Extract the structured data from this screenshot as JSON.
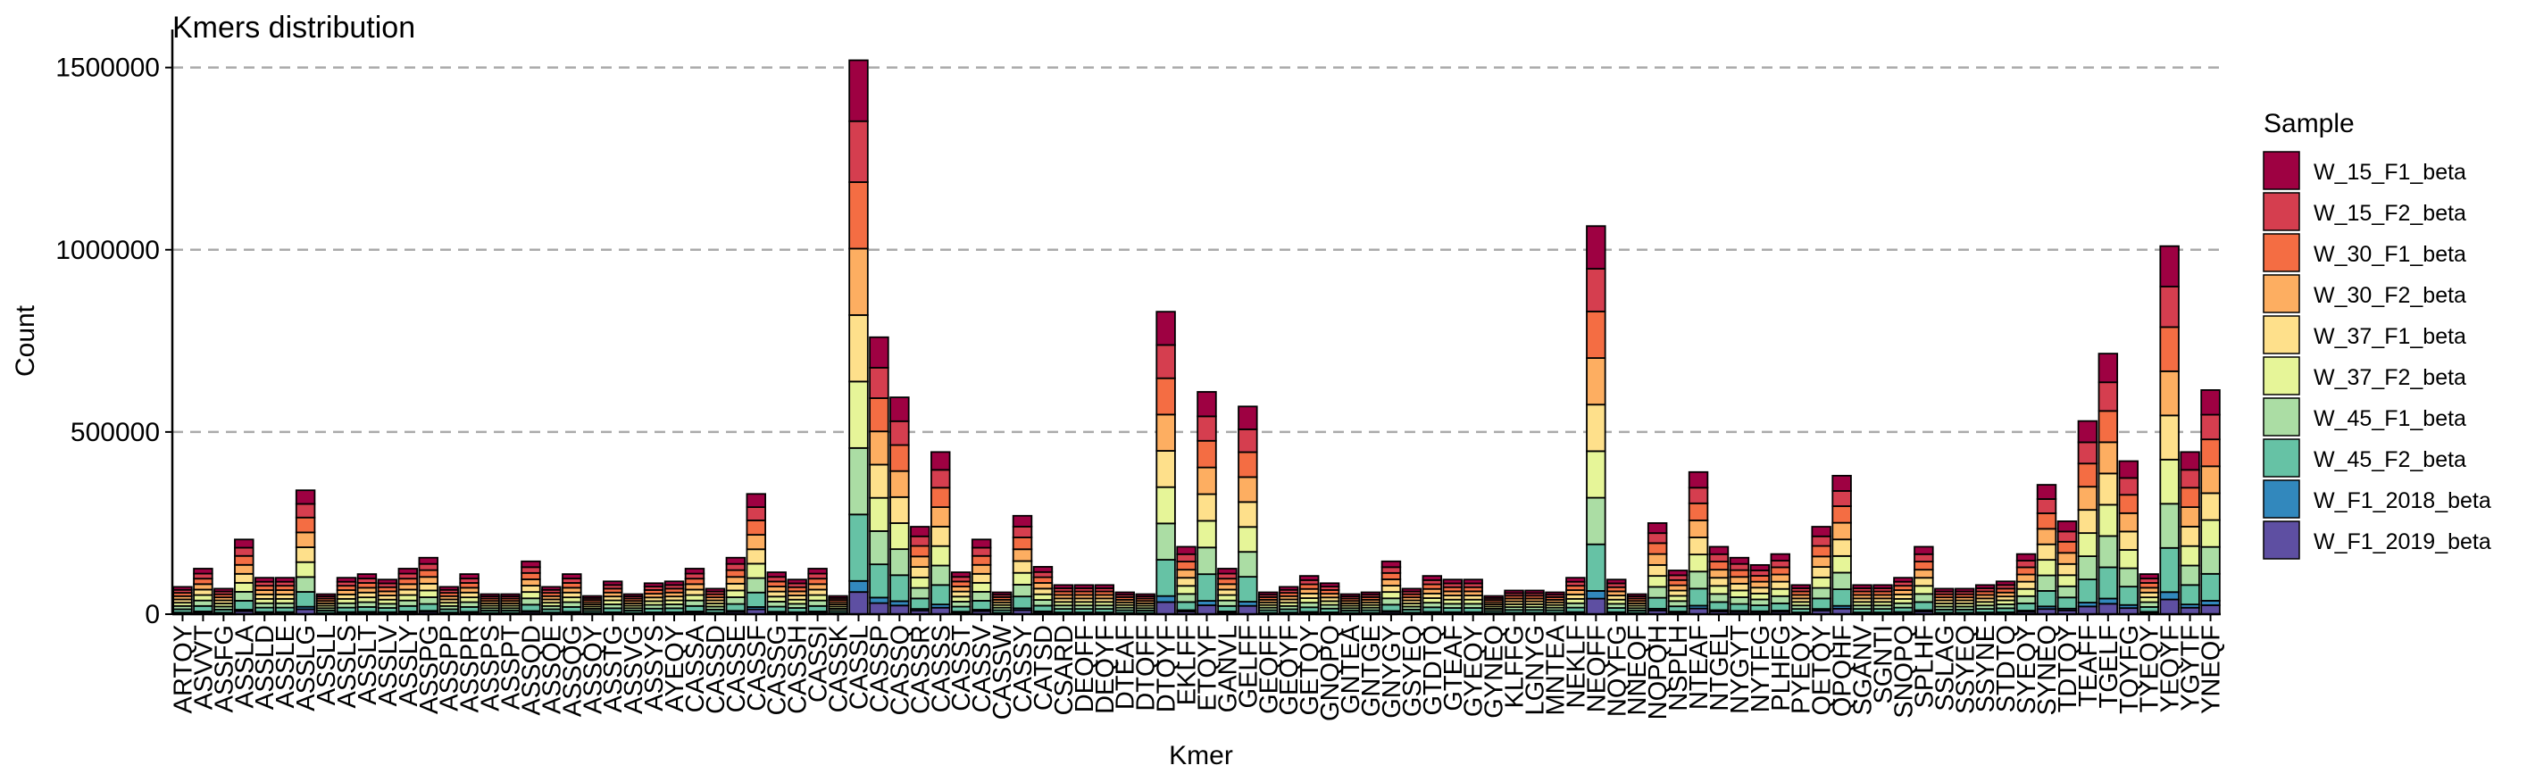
{
  "chart_data": {
    "type": "stacked_bar",
    "title": "Kmers distribution",
    "x_label": "Kmer",
    "y_label": "Count",
    "categories": [
      "ARTQY",
      "ASVVT",
      "ASSFG",
      "ASSLA",
      "ASSLD",
      "ASSLE",
      "ASSLG",
      "ASSLL",
      "ASSLS",
      "ASSLT",
      "ASSLV",
      "ASSLY",
      "ASSPG",
      "ASSPP",
      "ASSPR",
      "ASSPS",
      "ASSPT",
      "ASSQD",
      "ASSQE",
      "ASSQG",
      "ASSQY",
      "ASSTG",
      "ASSVG",
      "ASSYS",
      "AYEQY",
      "CASSA",
      "CASSD",
      "CASSE",
      "CASSF",
      "CASSG",
      "CASSH",
      "CASSI",
      "CASSK",
      "CASSL",
      "CASSP",
      "CASSQ",
      "CASSR",
      "CASSS",
      "CASST",
      "CASSV",
      "CASSW",
      "CASSY",
      "CATSD",
      "CSARD",
      "DEQFF",
      "DEQYF",
      "DTEAF",
      "DTQFF",
      "DTQYF",
      "EKLFF",
      "ETQYF",
      "GANVL",
      "GELFF",
      "GEQFF",
      "GEQYF",
      "GETQY",
      "GNQPQ",
      "GNTEA",
      "GNTGE",
      "GNYGY",
      "GSYEQ",
      "GTDTQ",
      "GTEAF",
      "GYEQY",
      "GYNEQ",
      "KLFFG",
      "LGNYG",
      "MNTEA",
      "NEKLF",
      "NEQFF",
      "NQYFG",
      "NNEQF",
      "NQPQH",
      "NSPLH",
      "NTEAF",
      "NTGEL",
      "NYGYT",
      "NYTFG",
      "PLHFG",
      "PYEQY",
      "QETQY",
      "QPQHF",
      "SGANV",
      "SGNTI",
      "SNQPQ",
      "SPLHF",
      "SSLAG",
      "SSYEQ",
      "SSYNE",
      "STDTQ",
      "SYEQY",
      "SYNEQ",
      "TDTQY",
      "TEAFF",
      "TGELF",
      "TQYFG",
      "TYEQY",
      "YEQYF",
      "YGYTF",
      "YNEQF"
    ],
    "series": [
      {
        "name": "W_15_F1_beta",
        "color": "#9E0142",
        "values": [
          8250,
          13750,
          7700,
          22550,
          11000,
          11000,
          37400,
          6050,
          11000,
          12100,
          10450,
          13750,
          17050,
          8250,
          12100,
          6050,
          6050,
          15950,
          8250,
          12100,
          5500,
          9900,
          6050,
          9350,
          9900,
          13750,
          7700,
          17050,
          36300,
          12650,
          10450,
          13750,
          5500,
          167200,
          83600,
          65450,
          26400,
          48950,
          12650,
          22550,
          6600,
          29700,
          14300,
          8800,
          8800,
          8800,
          6600,
          6050,
          91300,
          20350,
          67100,
          13750,
          62700,
          6600,
          8250,
          11550,
          9350,
          6050,
          6600,
          15950,
          7700,
          11550,
          10450,
          10450,
          5500,
          7150,
          7150,
          6600,
          11000,
          117150,
          10450,
          6050,
          27500,
          13200,
          42900,
          20350,
          17050,
          14850,
          18150,
          8800,
          26400,
          41800,
          8800,
          8800,
          11000,
          20350,
          7700,
          7700,
          8800,
          9900,
          18150,
          39050,
          28050,
          58300,
          78650,
          46200,
          12100,
          111100,
          48950,
          67650
        ]
      },
      {
        "name": "W_15_F2_beta",
        "color": "#D53E4F",
        "values": [
          8250,
          13750,
          7700,
          22550,
          11000,
          11000,
          37400,
          6050,
          11000,
          12100,
          10450,
          13750,
          17050,
          8250,
          12100,
          6050,
          6050,
          15950,
          8250,
          12100,
          5500,
          9900,
          6050,
          9350,
          9900,
          13750,
          7700,
          17050,
          36300,
          12650,
          10450,
          13750,
          5500,
          167200,
          83600,
          65450,
          26400,
          48950,
          12650,
          22550,
          6600,
          29700,
          14300,
          8800,
          8800,
          8800,
          6600,
          6050,
          91300,
          20350,
          67100,
          13750,
          62700,
          6600,
          8250,
          11550,
          9350,
          6050,
          6600,
          15950,
          7700,
          11550,
          10450,
          10450,
          5500,
          7150,
          7150,
          6600,
          11000,
          117150,
          10450,
          6050,
          27500,
          13200,
          42900,
          20350,
          17050,
          14850,
          18150,
          8800,
          26400,
          41800,
          8800,
          8800,
          11000,
          20350,
          7700,
          7700,
          8800,
          9900,
          18150,
          39050,
          28050,
          58300,
          78650,
          46200,
          12100,
          111100,
          48950,
          67650
        ]
      },
      {
        "name": "W_30_F1_beta",
        "color": "#F46D43",
        "values": [
          9000,
          15000,
          8400,
          24600,
          12000,
          12000,
          40800,
          6600,
          12000,
          13200,
          11400,
          15000,
          18600,
          9000,
          13200,
          6600,
          6600,
          17400,
          9000,
          13200,
          6000,
          10800,
          6600,
          10200,
          10800,
          15000,
          8400,
          18600,
          39600,
          13800,
          11400,
          15000,
          6000,
          182400,
          91200,
          71400,
          28800,
          53400,
          13800,
          24600,
          7200,
          32400,
          15600,
          9600,
          9600,
          9600,
          7200,
          6600,
          99600,
          22200,
          73200,
          15000,
          68400,
          7200,
          9000,
          12600,
          10200,
          6600,
          7200,
          17400,
          8400,
          12600,
          11400,
          11400,
          6000,
          7800,
          7800,
          7200,
          12000,
          127800,
          11400,
          6600,
          30000,
          14400,
          46800,
          22200,
          18600,
          16200,
          19800,
          9600,
          28800,
          45600,
          9600,
          9600,
          12000,
          22200,
          8400,
          8400,
          9600,
          10800,
          19800,
          42600,
          30600,
          63600,
          85800,
          50400,
          13200,
          121200,
          53400,
          73800
        ]
      },
      {
        "name": "W_30_F2_beta",
        "color": "#FDAE61",
        "values": [
          9000,
          15000,
          8400,
          24600,
          12000,
          12000,
          40800,
          6600,
          12000,
          13200,
          11400,
          15000,
          18600,
          9000,
          13200,
          6600,
          6600,
          17400,
          9000,
          13200,
          6000,
          10800,
          6600,
          10200,
          10800,
          15000,
          8400,
          18600,
          39600,
          13800,
          11400,
          15000,
          6000,
          182400,
          91200,
          71400,
          28800,
          53400,
          13800,
          24600,
          7200,
          32400,
          15600,
          9600,
          9600,
          9600,
          7200,
          6600,
          99600,
          22200,
          73200,
          15000,
          68400,
          7200,
          9000,
          12600,
          10200,
          6600,
          7200,
          17400,
          8400,
          12600,
          11400,
          11400,
          6000,
          7800,
          7800,
          7200,
          12000,
          127800,
          11400,
          6600,
          30000,
          14400,
          46800,
          22200,
          18600,
          16200,
          19800,
          9600,
          28800,
          45600,
          9600,
          9600,
          12000,
          22200,
          8400,
          8400,
          9600,
          10800,
          19800,
          42600,
          30600,
          63600,
          85800,
          50400,
          13200,
          121200,
          53400,
          73800
        ]
      },
      {
        "name": "W_37_F1_beta",
        "color": "#FEE08B",
        "values": [
          9000,
          15000,
          8400,
          24600,
          12000,
          12000,
          40800,
          6600,
          12000,
          13200,
          11400,
          15000,
          18600,
          9000,
          13200,
          6600,
          6600,
          17400,
          9000,
          13200,
          6000,
          10800,
          6600,
          10200,
          10800,
          15000,
          8400,
          18600,
          39600,
          13800,
          11400,
          15000,
          6000,
          182400,
          91200,
          71400,
          28800,
          53400,
          13800,
          24600,
          7200,
          32400,
          15600,
          9600,
          9600,
          9600,
          7200,
          6600,
          99600,
          22200,
          73200,
          15000,
          68400,
          7200,
          9000,
          12600,
          10200,
          6600,
          7200,
          17400,
          8400,
          12600,
          11400,
          11400,
          6000,
          7800,
          7800,
          7200,
          12000,
          127800,
          11400,
          6600,
          30000,
          14400,
          46800,
          22200,
          18600,
          16200,
          19800,
          9600,
          28800,
          45600,
          9600,
          9600,
          12000,
          22200,
          8400,
          8400,
          9600,
          10800,
          19800,
          42600,
          30600,
          63600,
          85800,
          50400,
          13200,
          121200,
          53400,
          73800
        ]
      },
      {
        "name": "W_37_F2_beta",
        "color": "#E6F598",
        "values": [
          9000,
          15000,
          8400,
          24600,
          12000,
          12000,
          40800,
          6600,
          12000,
          13200,
          11400,
          15000,
          18600,
          9000,
          13200,
          6600,
          6600,
          17400,
          9000,
          13200,
          6000,
          10800,
          6600,
          10200,
          10800,
          15000,
          8400,
          18600,
          39600,
          13800,
          11400,
          15000,
          6000,
          182400,
          91200,
          71400,
          28800,
          53400,
          13800,
          24600,
          7200,
          32400,
          15600,
          9600,
          9600,
          9600,
          7200,
          6600,
          99600,
          22200,
          73200,
          15000,
          68400,
          7200,
          9000,
          12600,
          10200,
          6600,
          7200,
          17400,
          8400,
          12600,
          11400,
          11400,
          6000,
          7800,
          7800,
          7200,
          12000,
          127800,
          11400,
          6600,
          30000,
          14400,
          46800,
          22200,
          18600,
          16200,
          19800,
          9600,
          28800,
          45600,
          9600,
          9600,
          12000,
          22200,
          8400,
          8400,
          9600,
          10800,
          19800,
          42600,
          30600,
          63600,
          85800,
          50400,
          13200,
          121200,
          53400,
          73800
        ]
      },
      {
        "name": "W_45_F1_beta",
        "color": "#ABDDA4",
        "values": [
          9000,
          15000,
          8400,
          24600,
          12000,
          12000,
          40800,
          6600,
          12000,
          13200,
          11400,
          15000,
          18600,
          9000,
          13200,
          6600,
          6600,
          17400,
          9000,
          13200,
          6000,
          10800,
          6600,
          10200,
          10800,
          15000,
          8400,
          18600,
          39600,
          13800,
          11400,
          15000,
          6000,
          182400,
          91200,
          71400,
          28800,
          53400,
          13800,
          24600,
          7200,
          32400,
          15600,
          9600,
          9600,
          9600,
          7200,
          6600,
          99600,
          22200,
          73200,
          15000,
          68400,
          7200,
          9000,
          12600,
          10200,
          6600,
          7200,
          17400,
          8400,
          12600,
          11400,
          11400,
          6000,
          7800,
          7800,
          7200,
          12000,
          127800,
          11400,
          6600,
          30000,
          14400,
          46800,
          22200,
          18600,
          16200,
          19800,
          9600,
          28800,
          45600,
          9600,
          9600,
          12000,
          22200,
          8400,
          8400,
          9600,
          10800,
          19800,
          42600,
          30600,
          63600,
          85800,
          50400,
          13200,
          121200,
          53400,
          73800
        ]
      },
      {
        "name": "W_45_F2_beta",
        "color": "#66C2A5",
        "values": [
          9000,
          15000,
          8400,
          24600,
          12000,
          12000,
          40800,
          6600,
          12000,
          13200,
          11400,
          15000,
          18600,
          9000,
          13200,
          6600,
          6600,
          17400,
          9000,
          13200,
          6000,
          10800,
          6600,
          10200,
          10800,
          15000,
          8400,
          18600,
          39600,
          13800,
          11400,
          15000,
          6000,
          182400,
          91200,
          71400,
          28800,
          53400,
          13800,
          24600,
          7200,
          32400,
          15600,
          9600,
          9600,
          9600,
          7200,
          6600,
          99600,
          22200,
          73200,
          15000,
          68400,
          7200,
          9000,
          12600,
          10200,
          6600,
          7200,
          17400,
          8400,
          12600,
          11400,
          11400,
          6000,
          7800,
          7800,
          7200,
          12000,
          127800,
          11400,
          6600,
          30000,
          14400,
          46800,
          22200,
          18600,
          16200,
          19800,
          9600,
          28800,
          45600,
          9600,
          9600,
          12000,
          22200,
          8400,
          8400,
          9600,
          10800,
          19800,
          42600,
          30600,
          63600,
          85800,
          50400,
          13200,
          121200,
          53400,
          73800
        ]
      },
      {
        "name": "W_F1_2018_beta",
        "color": "#3288BD",
        "values": [
          1500,
          2500,
          1400,
          4100,
          2000,
          2000,
          6800,
          1100,
          2000,
          2200,
          1900,
          2500,
          3100,
          1500,
          2200,
          1100,
          1100,
          2900,
          1500,
          2200,
          1000,
          1800,
          1100,
          1700,
          1800,
          2500,
          1400,
          3100,
          6600,
          2300,
          1900,
          2500,
          1000,
          30400,
          15200,
          11900,
          4800,
          8900,
          2300,
          4100,
          1200,
          5400,
          2600,
          1600,
          1600,
          1600,
          1200,
          1100,
          16600,
          3700,
          12200,
          2500,
          11400,
          1200,
          1500,
          2100,
          1700,
          1100,
          1200,
          2900,
          1400,
          2100,
          1900,
          1900,
          1000,
          1300,
          1300,
          1200,
          2000,
          21300,
          1900,
          1100,
          5000,
          2400,
          7800,
          3700,
          3100,
          2700,
          3300,
          1600,
          4800,
          7600,
          1600,
          1600,
          2000,
          3700,
          1400,
          1400,
          1600,
          1800,
          3300,
          7100,
          5100,
          10600,
          14300,
          8400,
          2200,
          20200,
          8900,
          12300
        ]
      },
      {
        "name": "W_F1_2019_beta",
        "color": "#5E4FA2",
        "values": [
          3000,
          5000,
          2800,
          8200,
          4000,
          4000,
          13600,
          2200,
          4000,
          4400,
          3800,
          5000,
          6200,
          3000,
          4400,
          2200,
          2200,
          5800,
          3000,
          4400,
          2000,
          3600,
          2200,
          3400,
          3600,
          5000,
          2800,
          6200,
          13200,
          4600,
          3800,
          5000,
          2000,
          60800,
          30400,
          23800,
          9600,
          17800,
          4600,
          8200,
          2400,
          10800,
          5200,
          3200,
          3200,
          3200,
          2400,
          2200,
          33200,
          7400,
          24400,
          5000,
          22800,
          2400,
          3000,
          4200,
          3400,
          2200,
          2400,
          5800,
          2800,
          4200,
          3800,
          3800,
          2000,
          2600,
          2600,
          2400,
          4000,
          42600,
          3800,
          2200,
          10000,
          4800,
          15600,
          7400,
          6200,
          5400,
          6600,
          3200,
          9600,
          15200,
          3200,
          3200,
          4000,
          7400,
          2800,
          2800,
          3200,
          3600,
          6600,
          14200,
          10200,
          21200,
          28600,
          16800,
          4400,
          40400,
          17800,
          24600
        ]
      }
    ],
    "ylim": [
      0,
      1580000
    ],
    "yticks": [
      0,
      500000,
      1000000,
      1500000
    ],
    "grid": true,
    "legend": {
      "title": "Sample",
      "position": "right"
    }
  }
}
